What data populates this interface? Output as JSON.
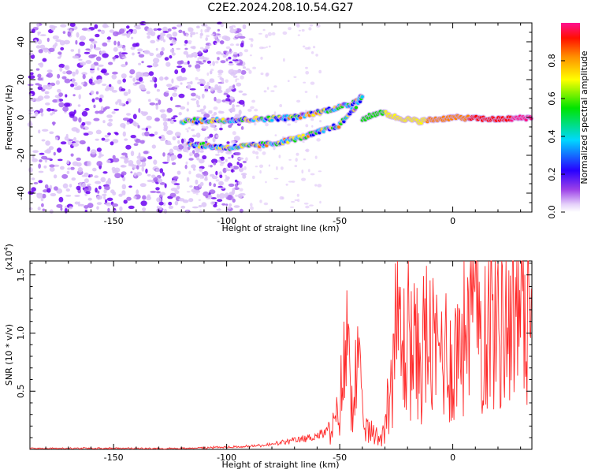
{
  "title": "C2E2.2024.208.10.54.G27",
  "chart_data": [
    {
      "type": "heatmap",
      "xlabel": "Height of straight line (km)",
      "ylabel": "Frequency (Hz)",
      "xlim": [
        -187,
        35
      ],
      "ylim": [
        -50,
        50
      ],
      "xticks": [
        -150,
        -100,
        -50,
        0
      ],
      "yticks": [
        40,
        20,
        0,
        -20,
        -40
      ],
      "colorbar": {
        "label": "Normalized spectral amplitude",
        "range": [
          0,
          1
        ],
        "ticks": [
          "0.0",
          "0.2",
          "0.4",
          "0.6",
          "0.8"
        ],
        "colors": [
          "#ffffff",
          "#d9b8f5",
          "#8a2be2",
          "#0000ff",
          "#00ccff",
          "#00e000",
          "#ffff00",
          "#ff8000",
          "#ff0000",
          "#ff1080"
        ]
      },
      "traces": [
        {
          "segment": "trail-upper",
          "x": [
            -120,
            -90,
            -70,
            -55,
            -45,
            -40
          ],
          "y": [
            -2,
            -1,
            0,
            4,
            7,
            12
          ]
        },
        {
          "segment": "trail-lower",
          "x": [
            -117,
            -100,
            -80,
            -65,
            -50,
            -40
          ],
          "y": [
            -14,
            -16,
            -14,
            -10,
            -4,
            10
          ]
        },
        {
          "segment": "head-echo",
          "x": [
            -40,
            -32,
            -25,
            -15,
            0,
            20,
            35
          ],
          "y": [
            -1,
            3,
            0,
            -2,
            0,
            -1,
            0
          ]
        }
      ]
    },
    {
      "type": "line",
      "xlabel": "Height of straight line (km)",
      "ylabel": "SNR (10 * v/v)",
      "yunit": "(x10^4)",
      "xlim": [
        -187,
        35
      ],
      "ylim": [
        0,
        1.62
      ],
      "xticks": [
        -150,
        -100,
        -50,
        0
      ],
      "yticks": [
        "0.5",
        "1.0",
        "1.5"
      ],
      "color": "#ff2a2a",
      "x": [
        -187,
        -160,
        -140,
        -120,
        -105,
        -90,
        -80,
        -72,
        -65,
        -60,
        -55,
        -52,
        -50,
        -48,
        -46,
        -44,
        -42,
        -40,
        -38,
        -35,
        -32,
        -30,
        -28,
        -26,
        -24,
        -22,
        -20,
        -18,
        -15,
        -12,
        -8,
        -4,
        0,
        5,
        8,
        12,
        18,
        25,
        30,
        35
      ],
      "y": [
        0.01,
        0.01,
        0.01,
        0.01,
        0.02,
        0.03,
        0.05,
        0.08,
        0.11,
        0.14,
        0.18,
        0.24,
        0.45,
        0.85,
        1.1,
        0.5,
        0.9,
        0.3,
        0.2,
        0.15,
        0.12,
        0.25,
        0.6,
        1.0,
        1.3,
        0.95,
        1.2,
        1.05,
        0.9,
        1.15,
        0.95,
        1.05,
        0.85,
        1.3,
        1.55,
        1.25,
        1.35,
        1.45,
        1.5,
        1.5
      ]
    }
  ]
}
